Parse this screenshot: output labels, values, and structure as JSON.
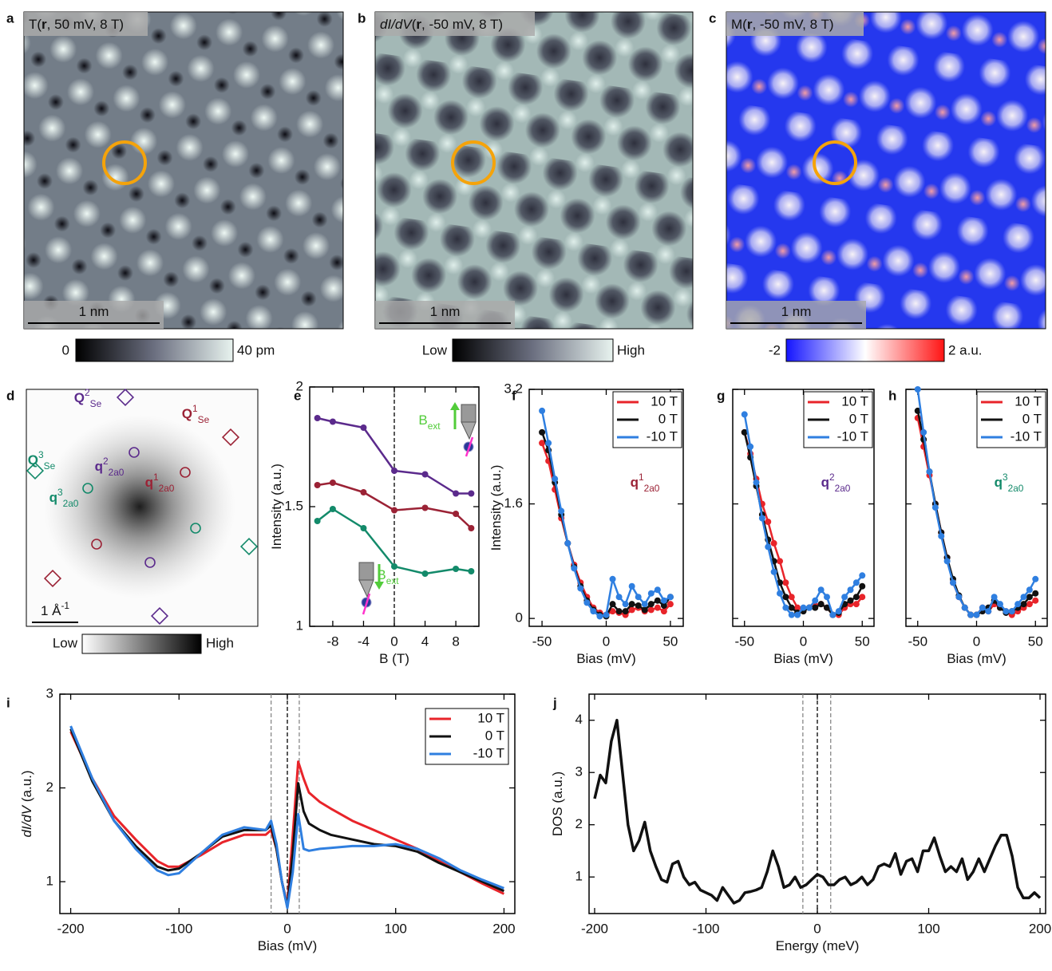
{
  "chart_data": [
    {
      "panel": "a",
      "type": "image",
      "title": [
        {
          "text": "T("
        },
        {
          "text": "r",
          "style": "bold"
        },
        {
          "text": ", 50 mV, 8 T)"
        }
      ],
      "scale_bar": [
        {
          "text": "1 nm"
        }
      ],
      "colorbar": [
        "0",
        "40 pm"
      ]
    },
    {
      "panel": "b",
      "type": "image",
      "title": [
        {
          "text": "dI/dV",
          "style": "italic"
        },
        {
          "text": "("
        },
        {
          "text": "r",
          "style": "bold"
        },
        {
          "text": ", -50 mV, 8 T)"
        }
      ],
      "scale_bar": [
        {
          "text": "1 nm"
        }
      ],
      "colorbar": [
        "Low",
        "High"
      ]
    },
    {
      "panel": "c",
      "type": "image",
      "title": [
        {
          "text": "M("
        },
        {
          "text": "r",
          "style": "bold"
        },
        {
          "text": ", -50 mV, 8 T)"
        }
      ],
      "scale_bar": [
        {
          "text": "1 nm"
        }
      ],
      "colorbar": [
        "-2",
        "2 a.u."
      ]
    },
    {
      "panel": "d",
      "type": "image",
      "scale_bar": [
        {
          "text": "1 Å"
        },
        {
          "text": "-1",
          "style": "sup"
        }
      ],
      "colorbar": [
        "Low",
        "High"
      ],
      "labels": [
        {
          "color": "#5b2a8c",
          "parts": [
            {
              "text": "Q",
              "style": "bold"
            },
            {
              "text": "2",
              "style": "sup"
            },
            {
              "text": "Se",
              "style": "sub"
            }
          ]
        },
        {
          "color": "#9b2235",
          "parts": [
            {
              "text": "Q",
              "style": "bold"
            },
            {
              "text": "1",
              "style": "sup"
            },
            {
              "text": "Se",
              "style": "sub"
            }
          ]
        },
        {
          "color": "#138a6a",
          "parts": [
            {
              "text": "Q",
              "style": "bold"
            },
            {
              "text": "3",
              "style": "sup"
            },
            {
              "text": "Se",
              "style": "sub"
            }
          ]
        },
        {
          "color": "#5b2a8c",
          "parts": [
            {
              "text": "q",
              "style": "bold"
            },
            {
              "text": "2",
              "style": "sup"
            },
            {
              "text": "2a0",
              "style": "sub"
            }
          ]
        },
        {
          "color": "#9b2235",
          "parts": [
            {
              "text": "q",
              "style": "bold"
            },
            {
              "text": "1",
              "style": "sup"
            },
            {
              "text": "2a0",
              "style": "sub"
            }
          ]
        },
        {
          "color": "#138a6a",
          "parts": [
            {
              "text": "q",
              "style": "bold"
            },
            {
              "text": "3",
              "style": "sup"
            },
            {
              "text": "2a0",
              "style": "sub"
            }
          ]
        }
      ]
    },
    {
      "panel": "e",
      "type": "line",
      "markers": true,
      "x": [
        -10,
        -8,
        -4,
        0,
        4,
        8,
        10
      ],
      "series": [
        {
          "color": "#5b2a8c",
          "values": [
            1.87,
            1.855,
            1.83,
            1.65,
            1.635,
            1.555,
            1.555
          ]
        },
        {
          "color": "#9b2235",
          "values": [
            1.59,
            1.6,
            1.56,
            1.485,
            1.495,
            1.47,
            1.41
          ]
        },
        {
          "color": "#138a6a",
          "values": [
            1.44,
            1.49,
            1.41,
            1.25,
            1.22,
            1.24,
            1.23
          ]
        }
      ],
      "xlim": [
        -11,
        11
      ],
      "ylim": [
        1,
        2
      ],
      "xticks": [
        -8,
        -4,
        0,
        4,
        8
      ],
      "yticks": [
        1,
        1.5,
        2
      ],
      "show_ytick_labels": true,
      "xlabel": [
        {
          "text": "B (T)"
        }
      ],
      "ylabel": [
        {
          "text": "Intensity (a.u.)"
        }
      ],
      "vlines": [
        {
          "x": 0,
          "color": "#000000"
        }
      ],
      "annotations": [
        {
          "color": "#52cc3a",
          "parts": [
            {
              "text": "B"
            },
            {
              "text": "ext",
              "style": "sub"
            }
          ]
        },
        {
          "color": "#52cc3a",
          "parts": [
            {
              "text": "B"
            },
            {
              "text": "ext",
              "style": "sub"
            }
          ]
        }
      ]
    },
    {
      "panel": "f",
      "type": "line",
      "markers": true,
      "x": [
        -50,
        -45,
        -40,
        -35,
        -30,
        -25,
        -20,
        -15,
        -10,
        -5,
        0,
        5,
        10,
        15,
        20,
        25,
        30,
        35,
        40,
        45,
        50
      ],
      "series": [
        {
          "name": "10 T",
          "color": "#e8242a",
          "values": [
            2.45,
            2.2,
            1.8,
            1.4,
            1.05,
            0.75,
            0.5,
            0.3,
            0.15,
            0.08,
            0.05,
            0.1,
            0.08,
            0.05,
            0.12,
            0.15,
            0.1,
            0.12,
            0.15,
            0.1,
            0.2
          ]
        },
        {
          "name": "0 T",
          "color": "#111111",
          "values": [
            2.6,
            2.35,
            1.9,
            1.45,
            1.05,
            0.72,
            0.45,
            0.25,
            0.12,
            0.05,
            0.03,
            0.2,
            0.1,
            0.1,
            0.2,
            0.18,
            0.12,
            0.2,
            0.25,
            0.18,
            0.3
          ]
        },
        {
          "name": "-10 T",
          "color": "#2f7fe0",
          "values": [
            2.9,
            2.45,
            1.95,
            1.5,
            1.05,
            0.7,
            0.42,
            0.22,
            0.1,
            0.03,
            0.05,
            0.55,
            0.3,
            0.2,
            0.45,
            0.3,
            0.2,
            0.35,
            0.4,
            0.25,
            0.3
          ]
        }
      ],
      "xlim": [
        -60,
        60
      ],
      "ylim": [
        -0.11,
        3.2
      ],
      "xticks": [
        -50,
        0,
        50
      ],
      "yticks": [
        0,
        1.6,
        3.2
      ],
      "show_ytick_labels": true,
      "xlabel": [
        {
          "text": "Bias (mV)"
        }
      ],
      "ylabel": [
        {
          "text": "Intensity (a.u.)"
        }
      ],
      "annotations": [
        {
          "color": "#9b2235",
          "parts": [
            {
              "text": "q",
              "style": "bold"
            },
            {
              "text": "1",
              "style": "sup"
            },
            {
              "text": "2a0",
              "style": "sub"
            }
          ]
        }
      ]
    },
    {
      "panel": "g",
      "type": "line",
      "markers": true,
      "x": [
        -50,
        -45,
        -40,
        -35,
        -30,
        -25,
        -20,
        -15,
        -10,
        -5,
        0,
        5,
        10,
        15,
        20,
        25,
        30,
        35,
        40,
        45,
        50
      ],
      "series": [
        {
          "name": "10 T",
          "color": "#e8242a",
          "values": [
            2.6,
            2.3,
            1.95,
            1.6,
            1.35,
            1.05,
            0.8,
            0.5,
            0.3,
            0.15,
            0.12,
            0.15,
            0.18,
            0.2,
            0.15,
            0.05,
            0.05,
            0.15,
            0.2,
            0.2,
            0.3
          ]
        },
        {
          "name": "0 T",
          "color": "#111111",
          "values": [
            2.6,
            2.25,
            1.85,
            1.45,
            1.1,
            0.8,
            0.5,
            0.3,
            0.15,
            0.08,
            0.1,
            0.15,
            0.15,
            0.2,
            0.15,
            0.05,
            0.08,
            0.2,
            0.25,
            0.3,
            0.45
          ]
        },
        {
          "name": "-10 T",
          "color": "#2f7fe0",
          "values": [
            2.85,
            2.4,
            1.9,
            1.4,
            1.0,
            0.65,
            0.35,
            0.15,
            0.05,
            0.05,
            0.15,
            0.15,
            0.25,
            0.4,
            0.3,
            0.05,
            0.1,
            0.3,
            0.4,
            0.5,
            0.6
          ]
        }
      ],
      "xlim": [
        -60,
        60
      ],
      "ylim": [
        -0.11,
        3.2
      ],
      "xticks": [
        -50,
        0,
        50
      ],
      "yticks": [
        0,
        1.6,
        3.2
      ],
      "show_ytick_labels": false,
      "xlabel": [
        {
          "text": "Bias (mV)"
        }
      ],
      "annotations": [
        {
          "color": "#5b2a8c",
          "parts": [
            {
              "text": "q",
              "style": "bold"
            },
            {
              "text": "2",
              "style": "sup"
            },
            {
              "text": "2a0",
              "style": "sub"
            }
          ]
        }
      ]
    },
    {
      "panel": "h",
      "type": "line",
      "markers": true,
      "x": [
        -50,
        -45,
        -40,
        -35,
        -30,
        -25,
        -20,
        -15,
        -10,
        -5,
        0,
        5,
        10,
        15,
        20,
        25,
        30,
        35,
        40,
        45,
        50
      ],
      "series": [
        {
          "name": "10 T",
          "color": "#e8242a",
          "values": [
            2.8,
            2.4,
            2.0,
            1.6,
            1.2,
            0.85,
            0.5,
            0.3,
            0.15,
            0.05,
            0.05,
            0.15,
            0.1,
            0.2,
            0.15,
            0.1,
            0.05,
            0.1,
            0.15,
            0.2,
            0.25
          ]
        },
        {
          "name": "0 T",
          "color": "#111111",
          "values": [
            2.9,
            2.5,
            2.05,
            1.6,
            1.2,
            0.85,
            0.55,
            0.32,
            0.15,
            0.05,
            0.05,
            0.1,
            0.15,
            0.25,
            0.15,
            0.08,
            0.1,
            0.15,
            0.2,
            0.3,
            0.35
          ]
        },
        {
          "name": "-10 T",
          "color": "#2f7fe0",
          "values": [
            3.2,
            2.6,
            2.05,
            1.55,
            1.15,
            0.8,
            0.5,
            0.3,
            0.15,
            0.05,
            0.05,
            0.15,
            0.1,
            0.3,
            0.2,
            0.1,
            0.1,
            0.2,
            0.3,
            0.4,
            0.55
          ]
        }
      ],
      "xlim": [
        -60,
        60
      ],
      "ylim": [
        -0.11,
        3.2
      ],
      "xticks": [
        -50,
        0,
        50
      ],
      "yticks": [
        0,
        1.6,
        3.2
      ],
      "show_ytick_labels": false,
      "xlabel": [
        {
          "text": "Bias (mV)"
        }
      ],
      "annotations": [
        {
          "color": "#138a6a",
          "parts": [
            {
              "text": "q",
              "style": "bold"
            },
            {
              "text": "3",
              "style": "sup"
            },
            {
              "text": "2a0",
              "style": "sub"
            }
          ]
        }
      ]
    },
    {
      "panel": "i",
      "type": "line",
      "markers": false,
      "x": [
        -200,
        -180,
        -160,
        -140,
        -120,
        -110,
        -100,
        -80,
        -60,
        -40,
        -20,
        -15,
        -10,
        -5,
        0,
        5,
        10,
        15,
        20,
        30,
        40,
        60,
        80,
        100,
        120,
        140,
        160,
        180,
        200
      ],
      "series": [
        {
          "name": "10 T",
          "color": "#e8242a",
          "values": [
            2.6,
            2.1,
            1.7,
            1.45,
            1.22,
            1.16,
            1.16,
            1.28,
            1.42,
            1.5,
            1.5,
            1.55,
            1.35,
            1.0,
            0.75,
            1.5,
            2.28,
            2.1,
            1.95,
            1.85,
            1.78,
            1.65,
            1.55,
            1.45,
            1.35,
            1.22,
            1.1,
            0.98,
            0.87
          ]
        },
        {
          "name": "0 T",
          "color": "#111111",
          "values": [
            2.63,
            2.07,
            1.65,
            1.38,
            1.16,
            1.12,
            1.14,
            1.3,
            1.48,
            1.55,
            1.55,
            1.6,
            1.35,
            1.0,
            0.73,
            1.3,
            2.05,
            1.75,
            1.62,
            1.55,
            1.5,
            1.45,
            1.4,
            1.38,
            1.32,
            1.2,
            1.1,
            1.0,
            0.9
          ]
        },
        {
          "name": "-10 T",
          "color": "#2f7fe0",
          "values": [
            2.66,
            2.1,
            1.65,
            1.35,
            1.12,
            1.07,
            1.09,
            1.3,
            1.5,
            1.58,
            1.55,
            1.65,
            1.4,
            1.0,
            0.72,
            1.1,
            1.72,
            1.35,
            1.33,
            1.35,
            1.36,
            1.38,
            1.38,
            1.4,
            1.35,
            1.25,
            1.12,
            1.02,
            0.93
          ]
        }
      ],
      "xlim": [
        -210,
        210
      ],
      "ylim": [
        0.66,
        3
      ],
      "xticks": [
        -200,
        -100,
        0,
        100,
        200
      ],
      "yticks": [
        1,
        2,
        3
      ],
      "show_ytick_labels": true,
      "xlabel": [
        {
          "text": "Bias (mV)"
        }
      ],
      "ylabel": [
        {
          "text": "dI/dV",
          "style": "italic"
        },
        {
          "text": " (a.u.)"
        }
      ],
      "vlines": [
        {
          "x": -15,
          "color": "#888888"
        },
        {
          "x": 0,
          "color": "#000000"
        },
        {
          "x": 11,
          "color": "#888888"
        }
      ]
    },
    {
      "panel": "j",
      "type": "line",
      "markers": false,
      "x": [
        -200,
        -195,
        -190,
        -185,
        -180,
        -175,
        -170,
        -165,
        -160,
        -155,
        -150,
        -145,
        -140,
        -135,
        -130,
        -125,
        -120,
        -115,
        -110,
        -105,
        -100,
        -95,
        -90,
        -85,
        -80,
        -75,
        -70,
        -65,
        -60,
        -55,
        -50,
        -45,
        -40,
        -35,
        -30,
        -25,
        -20,
        -15,
        -10,
        -5,
        0,
        5,
        10,
        15,
        20,
        25,
        30,
        35,
        40,
        45,
        50,
        55,
        60,
        65,
        70,
        75,
        80,
        85,
        90,
        95,
        100,
        105,
        110,
        115,
        120,
        125,
        130,
        135,
        140,
        145,
        150,
        155,
        160,
        165,
        170,
        175,
        180,
        185,
        190,
        195,
        200
      ],
      "series": [
        {
          "color": "#111111",
          "values": [
            2.5,
            2.95,
            2.8,
            3.6,
            4.0,
            3.0,
            2.0,
            1.5,
            1.7,
            2.05,
            1.5,
            1.2,
            0.95,
            0.9,
            1.25,
            1.3,
            1.0,
            0.85,
            0.9,
            0.75,
            0.7,
            0.65,
            0.55,
            0.8,
            0.65,
            0.5,
            0.55,
            0.7,
            0.72,
            0.75,
            0.8,
            1.1,
            1.5,
            1.2,
            0.8,
            0.85,
            1.0,
            0.8,
            0.85,
            0.95,
            1.05,
            1.0,
            0.85,
            0.85,
            0.95,
            1.0,
            0.85,
            0.9,
            1.0,
            0.85,
            0.95,
            1.2,
            1.25,
            1.2,
            1.45,
            1.05,
            1.3,
            1.35,
            1.1,
            1.5,
            1.5,
            1.75,
            1.4,
            1.1,
            1.2,
            1.1,
            1.35,
            0.95,
            1.1,
            1.35,
            1.1,
            1.35,
            1.6,
            1.8,
            1.8,
            1.4,
            0.8,
            0.6,
            0.6,
            0.7,
            0.6
          ]
        }
      ],
      "xlim": [
        -205,
        205
      ],
      "ylim": [
        0.3,
        4.5
      ],
      "xticks": [
        -200,
        -100,
        0,
        100,
        200
      ],
      "yticks": [
        1,
        2,
        3,
        4
      ],
      "show_ytick_labels": true,
      "xlabel": [
        {
          "text": "Energy (meV)"
        }
      ],
      "ylabel": [
        {
          "text": "DOS (a.u.)"
        }
      ],
      "vlines": [
        {
          "x": -13,
          "color": "#888888"
        },
        {
          "x": 0,
          "color": "#000000"
        },
        {
          "x": 12,
          "color": "#888888"
        }
      ]
    }
  ]
}
